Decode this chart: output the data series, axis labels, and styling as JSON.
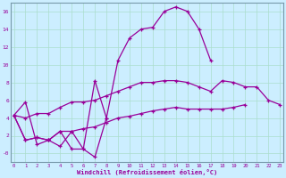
{
  "xlabel": "Windchill (Refroidissement éolien,°C)",
  "bg_color": "#cceeff",
  "line_color": "#990099",
  "grid_color": "#aaddcc",
  "border_color": "#7799aa",
  "series": [
    [
      4.3,
      5.8,
      1.0,
      1.5,
      0.8,
      2.5,
      0.5,
      -0.4,
      4.0,
      10.5,
      13.0,
      14.0,
      14.2,
      16.0,
      16.5,
      16.0,
      14.0,
      10.5,
      null,
      null,
      null,
      null,
      null,
      null
    ],
    [
      4.3,
      1.5,
      1.8,
      1.5,
      2.5,
      0.5,
      0.5,
      8.2,
      4.0,
      null,
      null,
      null,
      null,
      null,
      null,
      null,
      null,
      null,
      null,
      null,
      null,
      null,
      null,
      null
    ],
    [
      4.3,
      1.5,
      1.8,
      1.5,
      2.5,
      2.5,
      2.8,
      3.0,
      3.5,
      4.0,
      4.2,
      4.5,
      4.8,
      5.0,
      5.2,
      5.0,
      5.0,
      5.0,
      5.0,
      5.2,
      5.5,
      null,
      null,
      null
    ],
    [
      4.3,
      4.0,
      4.5,
      4.5,
      5.2,
      5.8,
      5.8,
      6.0,
      6.5,
      7.0,
      7.5,
      8.0,
      8.0,
      8.2,
      8.2,
      8.0,
      7.5,
      7.0,
      8.2,
      8.0,
      7.5,
      7.5,
      6.0,
      5.5
    ]
  ],
  "xlim": [
    -0.3,
    23.3
  ],
  "ylim": [
    -1.0,
    17.0
  ],
  "yticks": [
    0,
    2,
    4,
    6,
    8,
    10,
    12,
    14,
    16
  ],
  "ytick_labels": [
    "-0",
    "2",
    "4",
    "6",
    "8",
    "10",
    "12",
    "14",
    "16"
  ],
  "xticks": [
    0,
    1,
    2,
    3,
    4,
    5,
    6,
    7,
    8,
    9,
    10,
    11,
    12,
    13,
    14,
    15,
    16,
    17,
    18,
    19,
    20,
    21,
    22,
    23
  ]
}
